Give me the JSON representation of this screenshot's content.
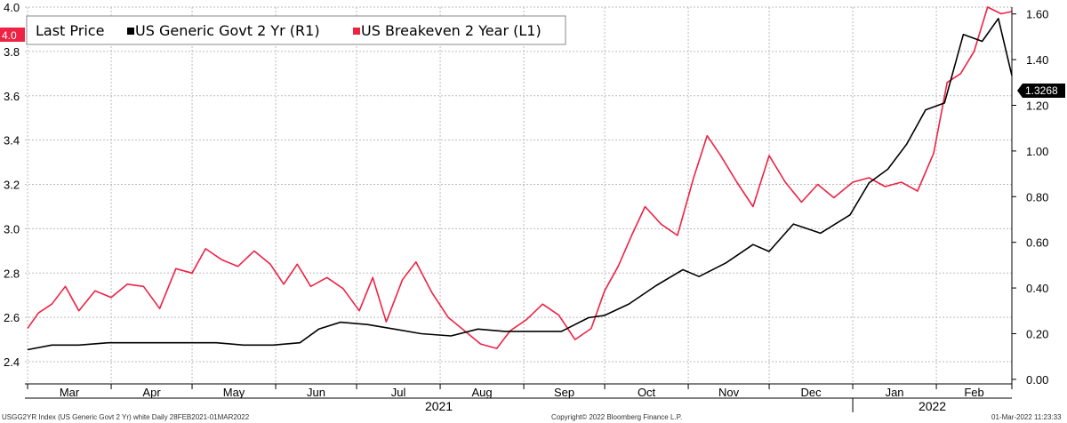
{
  "legend": {
    "title": "Last Price",
    "series_1_label": "US Generic Govt 2 Yr  (R1)",
    "series_2_label": "US Breakeven 2 Year  (L1)"
  },
  "footer": {
    "left": "USGG2YR Index (US Generic Govt 2 Yr) white  Daily 28FEB2021-01MAR2022",
    "center": "Copyright© 2022 Bloomberg Finance L.P.",
    "right": "01-Mar-2022 11:23:33"
  },
  "flags": {
    "left_last": "4.0",
    "right_last": "1.3268"
  },
  "colors": {
    "govt_2yr": "#000000",
    "breakeven_2yr": "#ee2244",
    "grid": "#bbbbbb"
  },
  "chart_data": {
    "type": "line",
    "x_axis": {
      "months": [
        "Mar",
        "Apr",
        "May",
        "Jun",
        "Jul",
        "Aug",
        "Sep",
        "Oct",
        "Nov",
        "Dec",
        "Jan",
        "Feb"
      ],
      "years": [
        "2021",
        "2022"
      ],
      "range": [
        "2021-02-28",
        "2022-03-01"
      ]
    },
    "y_left": {
      "ticks": [
        "2.4",
        "2.6",
        "2.8",
        "3.0",
        "3.2",
        "3.4",
        "3.6",
        "3.8",
        "4.0"
      ],
      "ylim": [
        2.3,
        4.0
      ]
    },
    "y_right": {
      "ticks": [
        "0.00",
        "0.20",
        "0.40",
        "0.60",
        "0.80",
        "1.00",
        "1.20",
        "1.40",
        "1.60"
      ],
      "ylim": [
        -0.02,
        1.63
      ]
    },
    "grid": true,
    "legend_position": "top-left",
    "series": [
      {
        "name": "US Breakeven 2 Year  (L1)",
        "axis": "left",
        "points": [
          [
            "2021-03-01",
            2.55
          ],
          [
            "2021-03-05",
            2.62
          ],
          [
            "2021-03-10",
            2.66
          ],
          [
            "2021-03-15",
            2.74
          ],
          [
            "2021-03-20",
            2.63
          ],
          [
            "2021-03-26",
            2.72
          ],
          [
            "2021-04-01",
            2.69
          ],
          [
            "2021-04-07",
            2.75
          ],
          [
            "2021-04-13",
            2.74
          ],
          [
            "2021-04-19",
            2.64
          ],
          [
            "2021-04-25",
            2.82
          ],
          [
            "2021-05-01",
            2.8
          ],
          [
            "2021-05-06",
            2.91
          ],
          [
            "2021-05-12",
            2.86
          ],
          [
            "2021-05-18",
            2.83
          ],
          [
            "2021-05-24",
            2.9
          ],
          [
            "2021-05-30",
            2.84
          ],
          [
            "2021-06-04",
            2.75
          ],
          [
            "2021-06-09",
            2.84
          ],
          [
            "2021-06-14",
            2.74
          ],
          [
            "2021-06-20",
            2.78
          ],
          [
            "2021-06-26",
            2.73
          ],
          [
            "2021-07-02",
            2.63
          ],
          [
            "2021-07-07",
            2.78
          ],
          [
            "2021-07-12",
            2.58
          ],
          [
            "2021-07-18",
            2.77
          ],
          [
            "2021-07-23",
            2.85
          ],
          [
            "2021-07-29",
            2.71
          ],
          [
            "2021-08-04",
            2.6
          ],
          [
            "2021-08-10",
            2.54
          ],
          [
            "2021-08-16",
            2.48
          ],
          [
            "2021-08-22",
            2.46
          ],
          [
            "2021-08-27",
            2.54
          ],
          [
            "2021-09-02",
            2.59
          ],
          [
            "2021-09-08",
            2.66
          ],
          [
            "2021-09-14",
            2.61
          ],
          [
            "2021-09-20",
            2.5
          ],
          [
            "2021-09-26",
            2.55
          ],
          [
            "2021-10-01",
            2.72
          ],
          [
            "2021-10-06",
            2.83
          ],
          [
            "2021-10-11",
            2.97
          ],
          [
            "2021-10-16",
            3.1
          ],
          [
            "2021-10-22",
            3.02
          ],
          [
            "2021-10-28",
            2.97
          ],
          [
            "2021-11-03",
            3.23
          ],
          [
            "2021-11-08",
            3.42
          ],
          [
            "2021-11-13",
            3.33
          ],
          [
            "2021-11-19",
            3.21
          ],
          [
            "2021-11-25",
            3.1
          ],
          [
            "2021-12-01",
            3.33
          ],
          [
            "2021-12-07",
            3.21
          ],
          [
            "2021-12-13",
            3.12
          ],
          [
            "2021-12-19",
            3.2
          ],
          [
            "2021-12-25",
            3.14
          ],
          [
            "2022-01-01",
            3.21
          ],
          [
            "2022-01-07",
            3.23
          ],
          [
            "2022-01-13",
            3.19
          ],
          [
            "2022-01-19",
            3.21
          ],
          [
            "2022-01-25",
            3.17
          ],
          [
            "2022-01-31",
            3.34
          ],
          [
            "2022-02-05",
            3.66
          ],
          [
            "2022-02-10",
            3.7
          ],
          [
            "2022-02-15",
            3.8
          ],
          [
            "2022-02-20",
            4.0
          ],
          [
            "2022-02-25",
            3.97
          ],
          [
            "2022-03-01",
            3.98
          ]
        ]
      },
      {
        "name": "US Generic Govt 2 Yr  (R1)",
        "axis": "right",
        "points": [
          [
            "2021-03-01",
            0.13
          ],
          [
            "2021-03-10",
            0.15
          ],
          [
            "2021-03-20",
            0.15
          ],
          [
            "2021-03-31",
            0.16
          ],
          [
            "2021-04-10",
            0.16
          ],
          [
            "2021-04-20",
            0.16
          ],
          [
            "2021-04-30",
            0.16
          ],
          [
            "2021-05-10",
            0.16
          ],
          [
            "2021-05-20",
            0.15
          ],
          [
            "2021-05-31",
            0.15
          ],
          [
            "2021-06-10",
            0.16
          ],
          [
            "2021-06-17",
            0.22
          ],
          [
            "2021-06-25",
            0.25
          ],
          [
            "2021-07-05",
            0.24
          ],
          [
            "2021-07-15",
            0.22
          ],
          [
            "2021-07-25",
            0.2
          ],
          [
            "2021-08-05",
            0.19
          ],
          [
            "2021-08-15",
            0.22
          ],
          [
            "2021-08-25",
            0.21
          ],
          [
            "2021-09-05",
            0.21
          ],
          [
            "2021-09-15",
            0.21
          ],
          [
            "2021-09-25",
            0.27
          ],
          [
            "2021-10-01",
            0.28
          ],
          [
            "2021-10-10",
            0.33
          ],
          [
            "2021-10-20",
            0.41
          ],
          [
            "2021-10-30",
            0.48
          ],
          [
            "2021-11-05",
            0.45
          ],
          [
            "2021-11-15",
            0.51
          ],
          [
            "2021-11-25",
            0.59
          ],
          [
            "2021-12-01",
            0.56
          ],
          [
            "2021-12-10",
            0.68
          ],
          [
            "2021-12-20",
            0.64
          ],
          [
            "2021-12-31",
            0.72
          ],
          [
            "2022-01-07",
            0.86
          ],
          [
            "2022-01-14",
            0.92
          ],
          [
            "2022-01-21",
            1.03
          ],
          [
            "2022-01-28",
            1.18
          ],
          [
            "2022-02-04",
            1.21
          ],
          [
            "2022-02-11",
            1.51
          ],
          [
            "2022-02-18",
            1.48
          ],
          [
            "2022-02-24",
            1.58
          ],
          [
            "2022-03-01",
            1.33
          ]
        ]
      }
    ]
  }
}
